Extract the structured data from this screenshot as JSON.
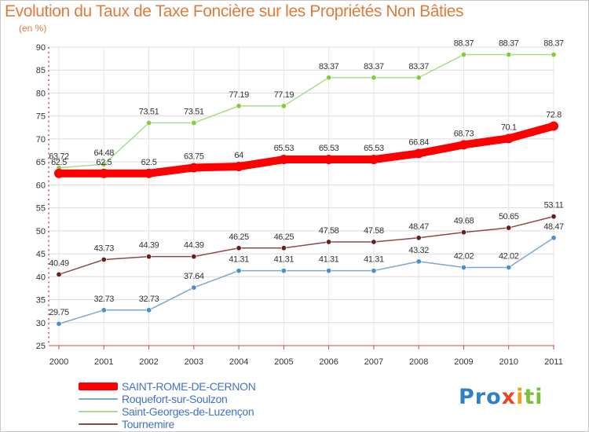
{
  "chart_data": {
    "type": "line",
    "title": "Evolution du Taux de Taxe Foncière sur les Propriétés Non Bâties",
    "subtitle": "(en %)",
    "categories": [
      "2000",
      "2001",
      "2002",
      "2003",
      "2004",
      "2005",
      "2006",
      "2007",
      "2008",
      "2009",
      "2010",
      "2011"
    ],
    "ylim": [
      25,
      90
    ],
    "yticks": [
      25,
      30,
      35,
      40,
      45,
      50,
      55,
      60,
      65,
      70,
      75,
      80,
      85,
      90
    ],
    "grid": true,
    "series": [
      {
        "name": "SAINT-ROME-DE-CERNON",
        "color": "#ff0000",
        "values": [
          62.5,
          62.5,
          62.5,
          63.75,
          64,
          65.53,
          65.53,
          65.53,
          66.84,
          68.73,
          70.1,
          72.8
        ],
        "labels": [
          "62.5",
          "62.5",
          "62.5",
          "63.75",
          "64",
          "65.53",
          "65.53",
          "65.53",
          "66.84",
          "68.73",
          "70.1",
          "72.8"
        ]
      },
      {
        "name": "Roquefort-sur-Soulzon",
        "color": "#7fa7cf",
        "marker": "#4b8fd0",
        "values": [
          29.75,
          32.73,
          32.73,
          37.64,
          41.31,
          41.31,
          41.31,
          41.31,
          43.32,
          42.02,
          42.02,
          48.47
        ],
        "labels": [
          "29.75",
          "32.73",
          "32.73",
          "37.64",
          "41.31",
          "41.31",
          "41.31",
          "41.31",
          "43.32",
          "42.02",
          "42.02",
          "48.47"
        ]
      },
      {
        "name": "Saint-Georges-de-Luzençon",
        "color": "#a8dc8c",
        "marker": "#86cc3a",
        "values": [
          63.72,
          64.48,
          73.51,
          73.51,
          77.19,
          77.19,
          83.37,
          83.37,
          83.37,
          88.37,
          88.37,
          88.37
        ],
        "labels": [
          "63.72",
          "64.48",
          "73.51",
          "73.51",
          "77.19",
          "77.19",
          "83.37",
          "83.37",
          "83.37",
          "88.37",
          "88.37",
          "88.37"
        ]
      },
      {
        "name": "Tournemire",
        "color": "#8b4a4a",
        "marker": "#6b1e1e",
        "values": [
          40.49,
          43.73,
          44.39,
          44.39,
          46.25,
          46.25,
          47.58,
          47.58,
          48.47,
          49.68,
          50.65,
          53.11
        ],
        "labels": [
          "40.49",
          "43.73",
          "44.39",
          "44.39",
          "46.25",
          "46.25",
          "47.58",
          "47.58",
          "48.47",
          "49.68",
          "50.65",
          "53.11"
        ]
      }
    ]
  },
  "logo": {
    "p1": "Pro",
    "p2": "x",
    "p3": "i",
    "p4": "ti"
  }
}
